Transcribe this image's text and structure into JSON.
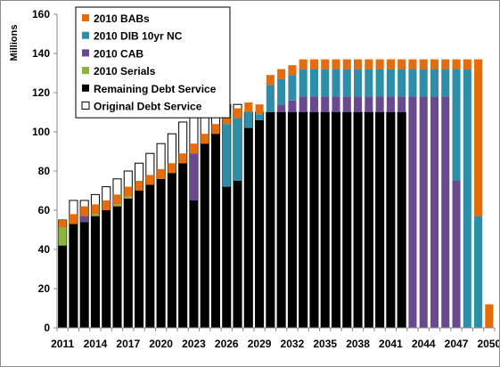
{
  "chart_data": {
    "type": "bar",
    "stacked": true,
    "ylabel": "Millions",
    "xlabel": "",
    "ylim": [
      0,
      160
    ],
    "y_ticks": [
      0,
      20,
      40,
      60,
      80,
      100,
      120,
      140,
      160
    ],
    "x_tick_labels": [
      "2011",
      "2014",
      "2017",
      "2020",
      "2023",
      "2026",
      "2029",
      "2032",
      "2035",
      "2038",
      "2041",
      "2044",
      "2047",
      "2050"
    ],
    "categories": [
      2011,
      2012,
      2013,
      2014,
      2015,
      2016,
      2017,
      2018,
      2019,
      2020,
      2021,
      2022,
      2023,
      2024,
      2025,
      2026,
      2027,
      2028,
      2029,
      2030,
      2031,
      2032,
      2033,
      2034,
      2035,
      2036,
      2037,
      2038,
      2039,
      2040,
      2041,
      2042,
      2043,
      2044,
      2045,
      2046,
      2047,
      2048,
      2049,
      2050
    ],
    "grid": false,
    "legend_position": "top-left",
    "series": [
      {
        "name": "Remaining Debt Service",
        "color": "#000000",
        "values": [
          42,
          53,
          54,
          57,
          60,
          62,
          66,
          70,
          73,
          76,
          79,
          84,
          65,
          94,
          99,
          72,
          75,
          102,
          106,
          110,
          110,
          110,
          110,
          110,
          110,
          110,
          110,
          110,
          110,
          110,
          110,
          110,
          0,
          0,
          0,
          0,
          0,
          0,
          0,
          0
        ]
      },
      {
        "name": "2010 Serials",
        "color": "#8db43e",
        "values": [
          9,
          0,
          0,
          1,
          0,
          1,
          1,
          0,
          0,
          0,
          0,
          0,
          0,
          0,
          0,
          0,
          0,
          0,
          0,
          0,
          0,
          0,
          0,
          0,
          0,
          0,
          0,
          0,
          0,
          0,
          0,
          0,
          0,
          0,
          0,
          0,
          0,
          0,
          0,
          0
        ]
      },
      {
        "name": "2010 CAB",
        "color": "#6a4a8e",
        "values": [
          0,
          0,
          3,
          0,
          0,
          0,
          0,
          0,
          0,
          0,
          0,
          0,
          24,
          0,
          0,
          0,
          0,
          0,
          0,
          0,
          4,
          6,
          8,
          8,
          8,
          8,
          8,
          8,
          8,
          8,
          8,
          8,
          118,
          118,
          118,
          118,
          75,
          0,
          0,
          0
        ]
      },
      {
        "name": "2010 DIB 10yr NC",
        "color": "#2e8da8",
        "values": [
          0,
          0,
          0,
          0,
          0,
          0,
          0,
          0,
          0,
          0,
          0,
          0,
          0,
          0,
          0,
          32,
          32,
          8,
          3,
          14,
          13,
          13,
          14,
          14,
          14,
          14,
          14,
          14,
          14,
          14,
          14,
          14,
          14,
          14,
          14,
          14,
          57,
          132,
          57,
          0
        ]
      },
      {
        "name": "2010 BABs",
        "color": "#e46c0a",
        "values": [
          4,
          5,
          5,
          5,
          5,
          5,
          5,
          5,
          5,
          5,
          5,
          5,
          5,
          5,
          5,
          5,
          5,
          5,
          5,
          5,
          5,
          5,
          5,
          5,
          5,
          5,
          5,
          5,
          5,
          5,
          5,
          5,
          5,
          5,
          5,
          5,
          5,
          5,
          80,
          12
        ]
      }
    ],
    "original_debt_service": {
      "name": "Original Debt Service",
      "color": "#ffffff",
      "values": [
        55,
        65,
        65,
        68,
        72,
        76,
        80,
        84,
        89,
        94,
        99,
        105,
        110,
        110,
        110,
        114,
        114,
        110,
        110,
        110,
        110,
        110,
        110,
        110,
        110,
        110,
        110,
        110,
        110,
        110,
        110,
        110,
        0,
        0,
        0,
        0,
        0,
        0,
        0,
        0
      ]
    },
    "legend": [
      {
        "label": "2010 BABs",
        "color": "#e46c0a",
        "outline": false
      },
      {
        "label": "2010 DIB 10yr NC",
        "color": "#2e8da8",
        "outline": false
      },
      {
        "label": "2010 CAB",
        "color": "#6a4a8e",
        "outline": false
      },
      {
        "label": "2010 Serials",
        "color": "#8db43e",
        "outline": false
      },
      {
        "label": "Remaining Debt Service",
        "color": "#000000",
        "outline": false
      },
      {
        "label": "Original Debt Service",
        "color": "#ffffff",
        "outline": true
      }
    ]
  }
}
